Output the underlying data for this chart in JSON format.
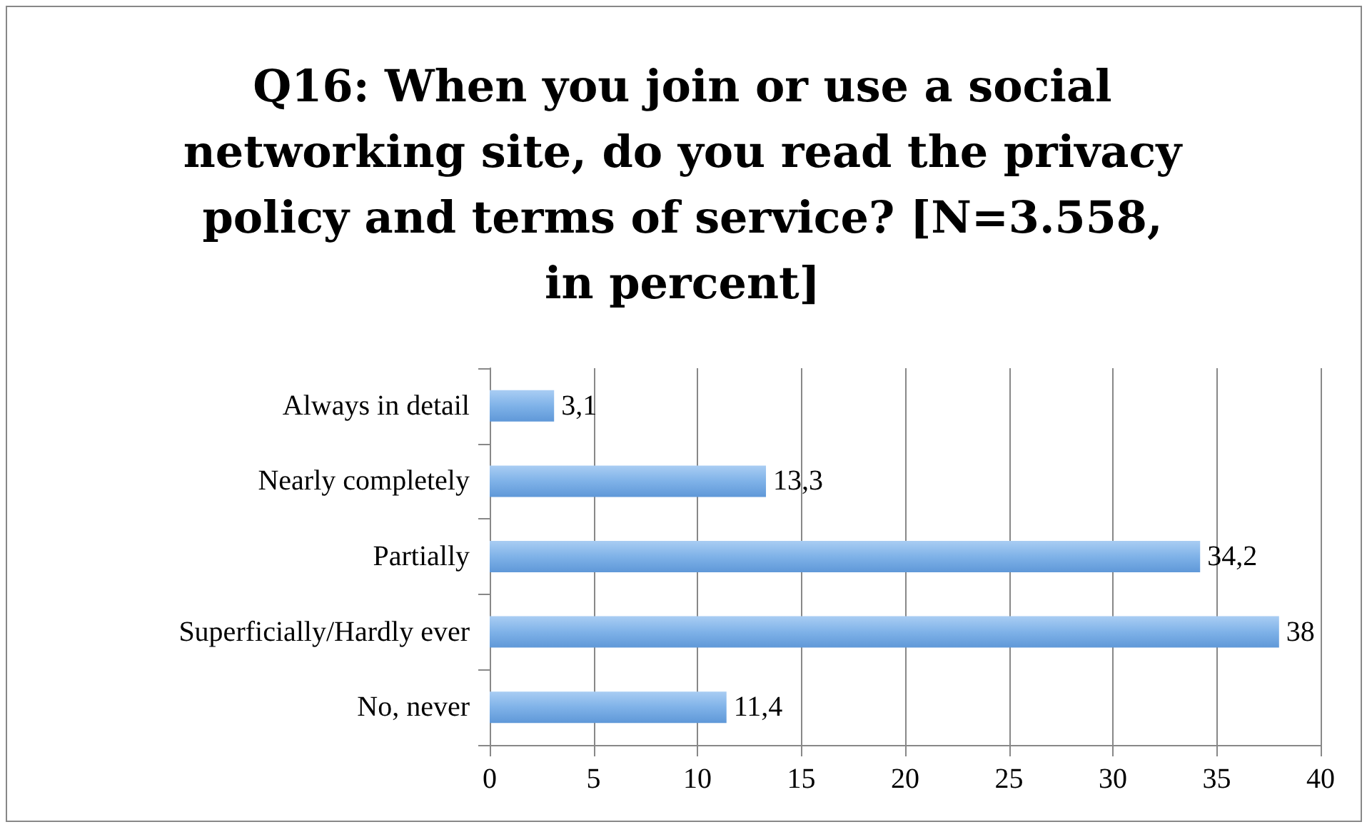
{
  "chart_data": {
    "type": "bar",
    "orientation": "horizontal",
    "title": "Q16: When you join or use a social networking site, do you read the privacy policy and terms of service? [N=3.558, in percent]",
    "categories": [
      "Always in detail",
      "Nearly completely",
      "Partially",
      "Superficially/Hardly ever",
      "No, never"
    ],
    "values": [
      3.1,
      13.3,
      34.2,
      38,
      11.4
    ],
    "value_labels": [
      "3,1",
      "13,3",
      "34,2",
      "38",
      "11,4"
    ],
    "color": "#7fb2e8",
    "xlim": [
      0,
      40
    ],
    "xticks": [
      0,
      5,
      10,
      15,
      20,
      25,
      30,
      35,
      40
    ],
    "grid": "x"
  }
}
